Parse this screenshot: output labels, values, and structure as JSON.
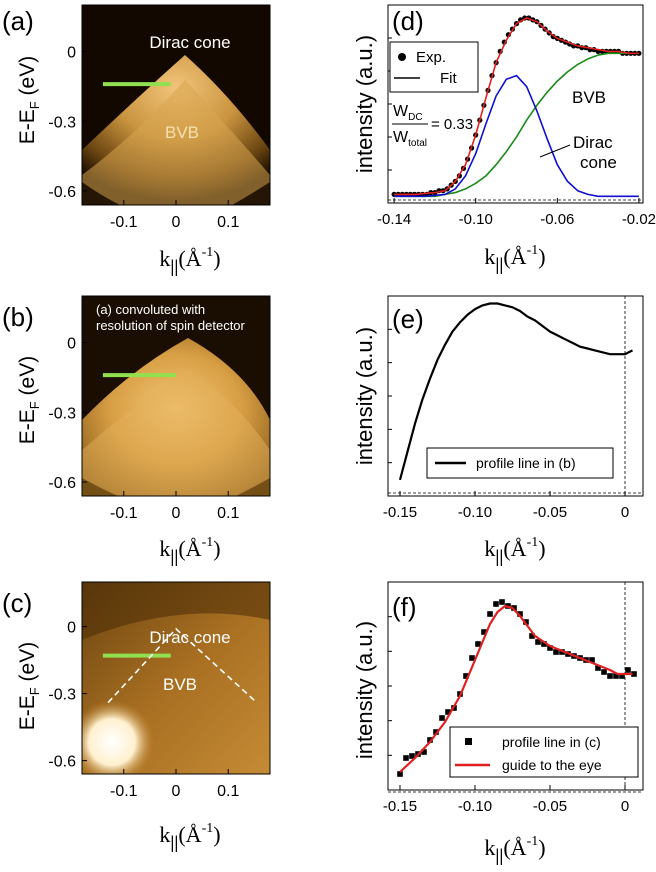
{
  "panels": {
    "a": {
      "label": "(a)",
      "overlay": {
        "title": "Dirac cone",
        "band": "BVB"
      },
      "ylabel": "E-E",
      "ylabel_sub": "F",
      "ylabel_unit": " (eV)",
      "xlabel": "k",
      "xlabel_sub": "||",
      "xlabel_unit": "(Å",
      "xlabel_exp": "-1",
      "xlabel_close": ")",
      "yticks": [
        {
          "v": 0,
          "label": "0"
        },
        {
          "v": -0.3,
          "label": "-0.3"
        },
        {
          "v": -0.6,
          "label": "-0.6"
        }
      ],
      "xticks": [
        {
          "v": -0.1,
          "label": "-0.1"
        },
        {
          "v": 0,
          "label": "0"
        },
        {
          "v": 0.1,
          "label": "0.1"
        }
      ],
      "xlim": [
        -0.18,
        0.18
      ],
      "ylim": [
        -0.66,
        0.2
      ],
      "profile_line": {
        "x": [
          -0.14,
          -0.01
        ],
        "y": -0.14,
        "color": "#90e050"
      }
    },
    "b": {
      "label": "(b)",
      "overlay": {
        "line1": "(a) convoluted with",
        "line2": "resolution of spin detector"
      },
      "ylabel": "E-E",
      "ylabel_sub": "F",
      "ylabel_unit": " (eV)",
      "xlabel": "k",
      "xlabel_sub": "||",
      "xlabel_unit": "(Å",
      "xlabel_exp": "-1",
      "xlabel_close": ")",
      "yticks": [
        {
          "v": 0,
          "label": "0"
        },
        {
          "v": -0.3,
          "label": "-0.3"
        },
        {
          "v": -0.6,
          "label": "-0.6"
        }
      ],
      "xticks": [
        {
          "v": -0.1,
          "label": "-0.1"
        },
        {
          "v": 0,
          "label": "0"
        },
        {
          "v": 0.1,
          "label": "0.1"
        }
      ],
      "xlim": [
        -0.18,
        0.18
      ],
      "ylim": [
        -0.66,
        0.2
      ],
      "profile_line": {
        "x": [
          -0.14,
          0.0
        ],
        "y": -0.14,
        "color": "#90e050"
      }
    },
    "c": {
      "label": "(c)",
      "overlay": {
        "title": "Dirac cone",
        "band": "BVB"
      },
      "ylabel": "E-E",
      "ylabel_sub": "F",
      "ylabel_unit": " (eV)",
      "xlabel": "k",
      "xlabel_sub": "||",
      "xlabel_unit": "(Å",
      "xlabel_exp": "-1",
      "xlabel_close": ")",
      "yticks": [
        {
          "v": 0,
          "label": "0"
        },
        {
          "v": -0.3,
          "label": "-0.3"
        },
        {
          "v": -0.6,
          "label": "-0.6"
        }
      ],
      "xticks": [
        {
          "v": -0.1,
          "label": "-0.1"
        },
        {
          "v": 0,
          "label": "0"
        },
        {
          "v": 0.1,
          "label": "0.1"
        }
      ],
      "xlim": [
        -0.18,
        0.18
      ],
      "ylim": [
        -0.66,
        0.2
      ],
      "profile_line": {
        "x": [
          -0.14,
          -0.01
        ],
        "y": -0.13,
        "color": "#90e050"
      },
      "guide_lines": [
        [
          [
            -0.13,
            -0.34
          ],
          [
            0.0,
            -0.01
          ],
          [
            0.15,
            -0.33
          ]
        ]
      ]
    },
    "d": {
      "label": "(d)",
      "ylabel": "intensity (a.u.)",
      "xlabel": "k",
      "xlabel_sub": "||",
      "xlabel_unit": "(Å",
      "xlabel_exp": "-1",
      "xlabel_close": ")",
      "xticks": [
        {
          "v": -0.14,
          "label": "-0.14"
        },
        {
          "v": -0.1,
          "label": "-0.10"
        },
        {
          "v": -0.06,
          "label": "-0.06"
        },
        {
          "v": -0.02,
          "label": "-0.02"
        }
      ],
      "legend": [
        {
          "marker": "dot",
          "label": "Exp."
        },
        {
          "marker": "line",
          "label": "Fit"
        }
      ],
      "ratio": {
        "num": "W",
        "num_sub": "DC",
        "den": "W",
        "den_sub": "total",
        "value": "= 0.33"
      },
      "annotations": {
        "bvb": "BVB",
        "dirac1": "Dirac",
        "dirac2": "cone"
      }
    },
    "e": {
      "label": "(e)",
      "ylabel": "intensity (a.u.)",
      "xlabel": "k",
      "xlabel_sub": "||",
      "xlabel_unit": "(Å",
      "xlabel_exp": "-1",
      "xlabel_close": ")",
      "xticks": [
        {
          "v": -0.15,
          "label": "-0.15"
        },
        {
          "v": -0.1,
          "label": "-0.10"
        },
        {
          "v": -0.05,
          "label": "-0.05"
        },
        {
          "v": 0,
          "label": "0"
        }
      ],
      "legend": [
        {
          "marker": "line",
          "label": "profile line in (b)"
        }
      ]
    },
    "f": {
      "label": "(f)",
      "ylabel": "intensity (a.u.)",
      "xlabel": "k",
      "xlabel_sub": "||",
      "xlabel_unit": "(Å",
      "xlabel_exp": "-1",
      "xlabel_close": ")",
      "xticks": [
        {
          "v": -0.15,
          "label": "-0.15"
        },
        {
          "v": -0.1,
          "label": "-0.10"
        },
        {
          "v": -0.05,
          "label": "-0.05"
        },
        {
          "v": 0,
          "label": "0"
        }
      ],
      "legend": [
        {
          "marker": "square",
          "label": "profile line in (c)"
        },
        {
          "marker": "redline",
          "label": "guide to the eye"
        }
      ]
    }
  },
  "chart_data": [
    {
      "panel": "d",
      "type": "line",
      "xlim": [
        -0.143,
        -0.018
      ],
      "ylim": [
        0,
        1.05
      ],
      "series": [
        {
          "name": "Exp.",
          "style": "dots",
          "color": "#000000",
          "x": [
            -0.14,
            -0.138,
            -0.136,
            -0.134,
            -0.132,
            -0.13,
            -0.128,
            -0.126,
            -0.124,
            -0.122,
            -0.12,
            -0.118,
            -0.116,
            -0.114,
            -0.112,
            -0.11,
            -0.108,
            -0.106,
            -0.104,
            -0.102,
            -0.1,
            -0.098,
            -0.096,
            -0.094,
            -0.092,
            -0.09,
            -0.088,
            -0.086,
            -0.084,
            -0.082,
            -0.08,
            -0.078,
            -0.076,
            -0.074,
            -0.072,
            -0.07,
            -0.068,
            -0.066,
            -0.064,
            -0.062,
            -0.06,
            -0.058,
            -0.056,
            -0.054,
            -0.052,
            -0.05,
            -0.048,
            -0.046,
            -0.044,
            -0.042,
            -0.04,
            -0.038,
            -0.036,
            -0.034,
            -0.032,
            -0.03,
            -0.028,
            -0.026,
            -0.024,
            -0.022,
            -0.02
          ],
          "y": [
            0.03,
            0.03,
            0.03,
            0.03,
            0.03,
            0.03,
            0.03,
            0.03,
            0.03,
            0.04,
            0.04,
            0.05,
            0.05,
            0.06,
            0.08,
            0.1,
            0.13,
            0.17,
            0.22,
            0.28,
            0.35,
            0.43,
            0.51,
            0.59,
            0.67,
            0.74,
            0.8,
            0.85,
            0.89,
            0.92,
            0.95,
            0.97,
            0.98,
            0.98,
            0.97,
            0.96,
            0.94,
            0.92,
            0.9,
            0.88,
            0.87,
            0.86,
            0.85,
            0.84,
            0.83,
            0.83,
            0.82,
            0.82,
            0.81,
            0.81,
            0.8,
            0.8,
            0.8,
            0.8,
            0.8,
            0.8,
            0.79,
            0.79,
            0.79,
            0.79,
            0.79
          ]
        },
        {
          "name": "Fit",
          "style": "line",
          "color": "#e02020",
          "x": [
            -0.14,
            -0.13,
            -0.12,
            -0.115,
            -0.11,
            -0.105,
            -0.1,
            -0.095,
            -0.09,
            -0.085,
            -0.08,
            -0.075,
            -0.07,
            -0.065,
            -0.06,
            -0.055,
            -0.05,
            -0.045,
            -0.04,
            -0.035,
            -0.03,
            -0.025,
            -0.02
          ],
          "y": [
            0.03,
            0.03,
            0.04,
            0.05,
            0.1,
            0.19,
            0.35,
            0.55,
            0.74,
            0.86,
            0.95,
            0.98,
            0.96,
            0.91,
            0.87,
            0.85,
            0.83,
            0.82,
            0.81,
            0.8,
            0.8,
            0.79,
            0.79
          ]
        },
        {
          "name": "BVB",
          "style": "line",
          "color": "#1a8a1a",
          "x": [
            -0.14,
            -0.13,
            -0.12,
            -0.115,
            -0.11,
            -0.105,
            -0.1,
            -0.095,
            -0.09,
            -0.085,
            -0.08,
            -0.075,
            -0.07,
            -0.065,
            -0.06,
            -0.055,
            -0.05,
            -0.045,
            -0.04,
            -0.035,
            -0.03,
            -0.025,
            -0.02
          ],
          "y": [
            0.02,
            0.02,
            0.02,
            0.03,
            0.04,
            0.06,
            0.09,
            0.13,
            0.19,
            0.26,
            0.34,
            0.43,
            0.51,
            0.58,
            0.64,
            0.69,
            0.73,
            0.76,
            0.78,
            0.79,
            0.79,
            0.79,
            0.79
          ]
        },
        {
          "name": "Dirac cone",
          "style": "line",
          "color": "#1010d0",
          "x": [
            -0.14,
            -0.125,
            -0.115,
            -0.11,
            -0.105,
            -0.1,
            -0.095,
            -0.09,
            -0.085,
            -0.08,
            -0.075,
            -0.07,
            -0.065,
            -0.06,
            -0.055,
            -0.05,
            -0.045,
            -0.04,
            -0.03,
            -0.02
          ],
          "y": [
            0.02,
            0.02,
            0.03,
            0.06,
            0.13,
            0.25,
            0.41,
            0.56,
            0.65,
            0.67,
            0.61,
            0.48,
            0.33,
            0.19,
            0.1,
            0.05,
            0.03,
            0.02,
            0.02,
            0.02
          ]
        }
      ]
    },
    {
      "panel": "e",
      "type": "line",
      "xlim": [
        -0.158,
        0.012
      ],
      "ylim": [
        0,
        1.05
      ],
      "series": [
        {
          "name": "profile line in (b)",
          "style": "line",
          "color": "#000000",
          "x": [
            -0.15,
            -0.145,
            -0.14,
            -0.135,
            -0.13,
            -0.125,
            -0.12,
            -0.115,
            -0.11,
            -0.105,
            -0.1,
            -0.095,
            -0.09,
            -0.085,
            -0.08,
            -0.075,
            -0.07,
            -0.065,
            -0.06,
            -0.055,
            -0.05,
            -0.045,
            -0.04,
            -0.035,
            -0.03,
            -0.025,
            -0.02,
            -0.015,
            -0.01,
            -0.005,
            0.0,
            0.005
          ],
          "y": [
            0.07,
            0.22,
            0.37,
            0.5,
            0.61,
            0.71,
            0.79,
            0.86,
            0.91,
            0.95,
            0.98,
            1.0,
            1.01,
            1.01,
            1.0,
            0.99,
            0.97,
            0.94,
            0.92,
            0.89,
            0.86,
            0.84,
            0.82,
            0.8,
            0.78,
            0.77,
            0.76,
            0.75,
            0.74,
            0.74,
            0.74,
            0.76
          ]
        }
      ]
    },
    {
      "panel": "f",
      "type": "scatter",
      "xlim": [
        -0.158,
        0.012
      ],
      "ylim": [
        0,
        1.05
      ],
      "series": [
        {
          "name": "profile line in (c)",
          "style": "squares",
          "color": "#000000",
          "x": [
            -0.15,
            -0.146,
            -0.142,
            -0.138,
            -0.134,
            -0.13,
            -0.126,
            -0.122,
            -0.118,
            -0.114,
            -0.11,
            -0.106,
            -0.102,
            -0.098,
            -0.094,
            -0.09,
            -0.086,
            -0.082,
            -0.078,
            -0.074,
            -0.07,
            -0.066,
            -0.062,
            -0.058,
            -0.054,
            -0.05,
            -0.046,
            -0.042,
            -0.038,
            -0.034,
            -0.03,
            -0.026,
            -0.022,
            -0.018,
            -0.014,
            -0.01,
            -0.006,
            -0.002,
            0.002,
            0.006
          ],
          "y": [
            0.09,
            0.17,
            0.18,
            0.19,
            0.2,
            0.26,
            0.3,
            0.37,
            0.4,
            0.42,
            0.49,
            0.58,
            0.67,
            0.74,
            0.8,
            0.89,
            0.94,
            0.95,
            0.93,
            0.92,
            0.89,
            0.85,
            0.78,
            0.75,
            0.74,
            0.72,
            0.7,
            0.7,
            0.69,
            0.68,
            0.67,
            0.66,
            0.66,
            0.62,
            0.6,
            0.58,
            0.58,
            0.58,
            0.61,
            0.59
          ]
        },
        {
          "name": "guide to the eye",
          "style": "line",
          "color": "#e02020",
          "x": [
            -0.15,
            -0.14,
            -0.13,
            -0.12,
            -0.11,
            -0.1,
            -0.095,
            -0.09,
            -0.085,
            -0.08,
            -0.075,
            -0.07,
            -0.065,
            -0.06,
            -0.05,
            -0.04,
            -0.03,
            -0.02,
            -0.01,
            -0.005,
            0.0,
            0.005
          ],
          "y": [
            0.1,
            0.17,
            0.25,
            0.35,
            0.48,
            0.66,
            0.75,
            0.84,
            0.9,
            0.93,
            0.92,
            0.88,
            0.83,
            0.78,
            0.73,
            0.7,
            0.67,
            0.64,
            0.61,
            0.59,
            0.59,
            0.59
          ]
        }
      ]
    }
  ]
}
